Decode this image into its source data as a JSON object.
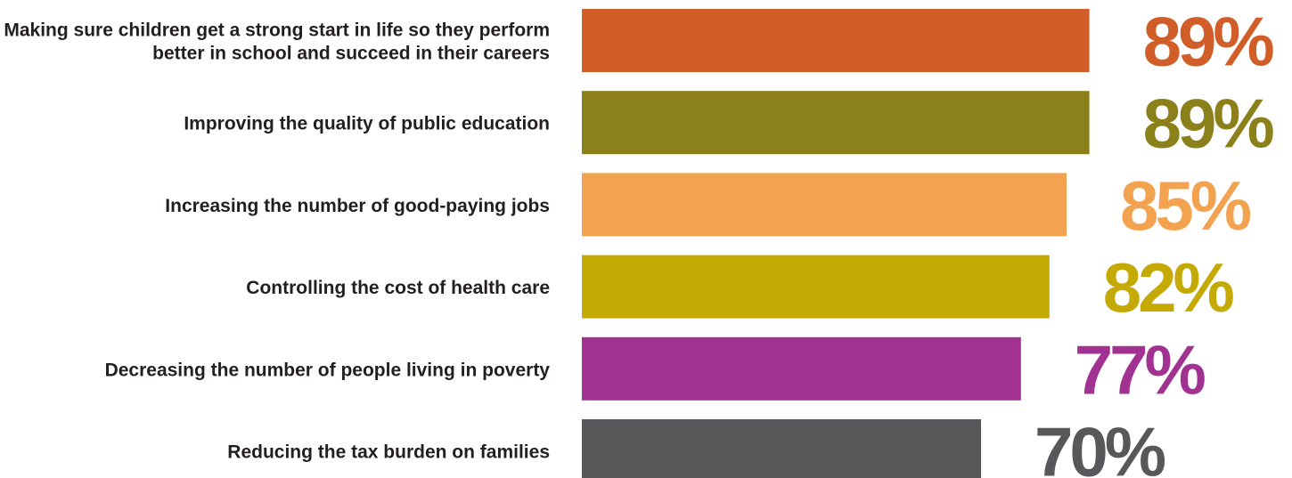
{
  "chart_data": {
    "type": "bar",
    "orientation": "horizontal",
    "categories": [
      [
        "Making sure children get a strong start in life so they perform",
        "better in school and succeed in their careers"
      ],
      [
        "Improving the quality of public education"
      ],
      [
        "Increasing the number of good-paying jobs"
      ],
      [
        "Controlling the cost of health care"
      ],
      [
        "Decreasing the number of people living in poverty"
      ],
      [
        "Reducing the tax burden on families"
      ]
    ],
    "values": [
      89,
      89,
      85,
      82,
      77,
      70
    ],
    "value_labels": [
      "89%",
      "89%",
      "85%",
      "82%",
      "77%",
      "70%"
    ],
    "unit": "%",
    "colors": [
      "#d15e29",
      "#8b8019",
      "#f3a24f",
      "#c5aa05",
      "#a23291",
      "#58585a"
    ],
    "xlim": [
      0,
      100
    ],
    "grid": false,
    "legend": "none"
  }
}
